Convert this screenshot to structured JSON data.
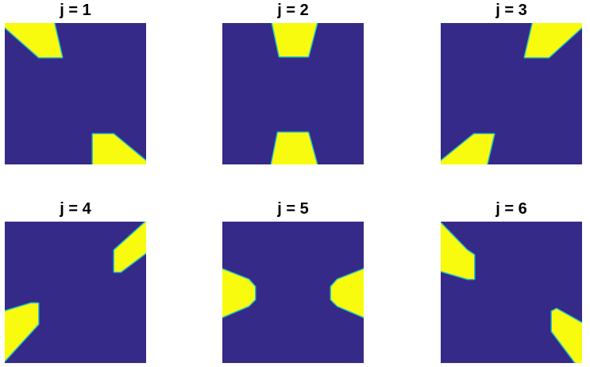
{
  "colors": {
    "background_field": "#352a87",
    "edge_cyan": "#29c3c3",
    "edge_green": "#a8d64a",
    "fill_yellow": "#f9fb0e"
  },
  "panels": [
    {
      "title": "j = 1"
    },
    {
      "title": "j = 2"
    },
    {
      "title": "j = 3"
    },
    {
      "title": "j = 4"
    },
    {
      "title": "j = 5"
    },
    {
      "title": "j = 6"
    }
  ]
}
